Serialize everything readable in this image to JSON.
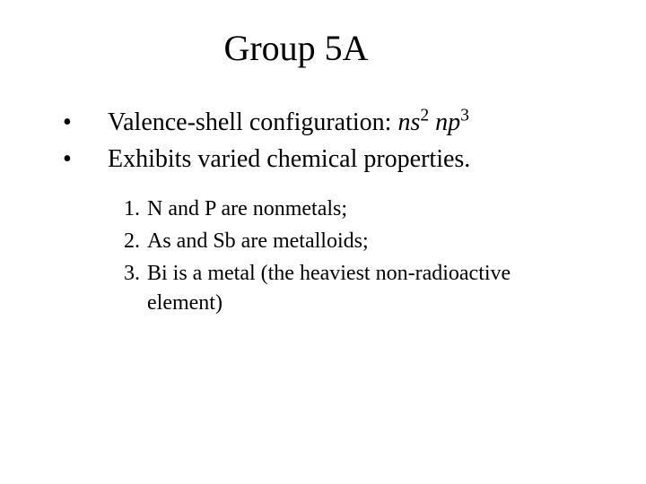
{
  "title": "Group 5A",
  "bullets": [
    {
      "marker": "•",
      "prefix": "Valence-shell configuration: ",
      "config_ns_base": "ns",
      "config_ns_sup": "2",
      "config_np_base": " np",
      "config_np_sup": "3"
    },
    {
      "marker": "•",
      "text": "Exhibits varied chemical properties."
    }
  ],
  "numbered": [
    {
      "num": "1.",
      "text": "N and P are nonmetals;"
    },
    {
      "num": "2.",
      "text": "As and Sb are metalloids;"
    },
    {
      "num": "3.",
      "text": "Bi is a metal (the heaviest non-radioactive element)"
    }
  ]
}
